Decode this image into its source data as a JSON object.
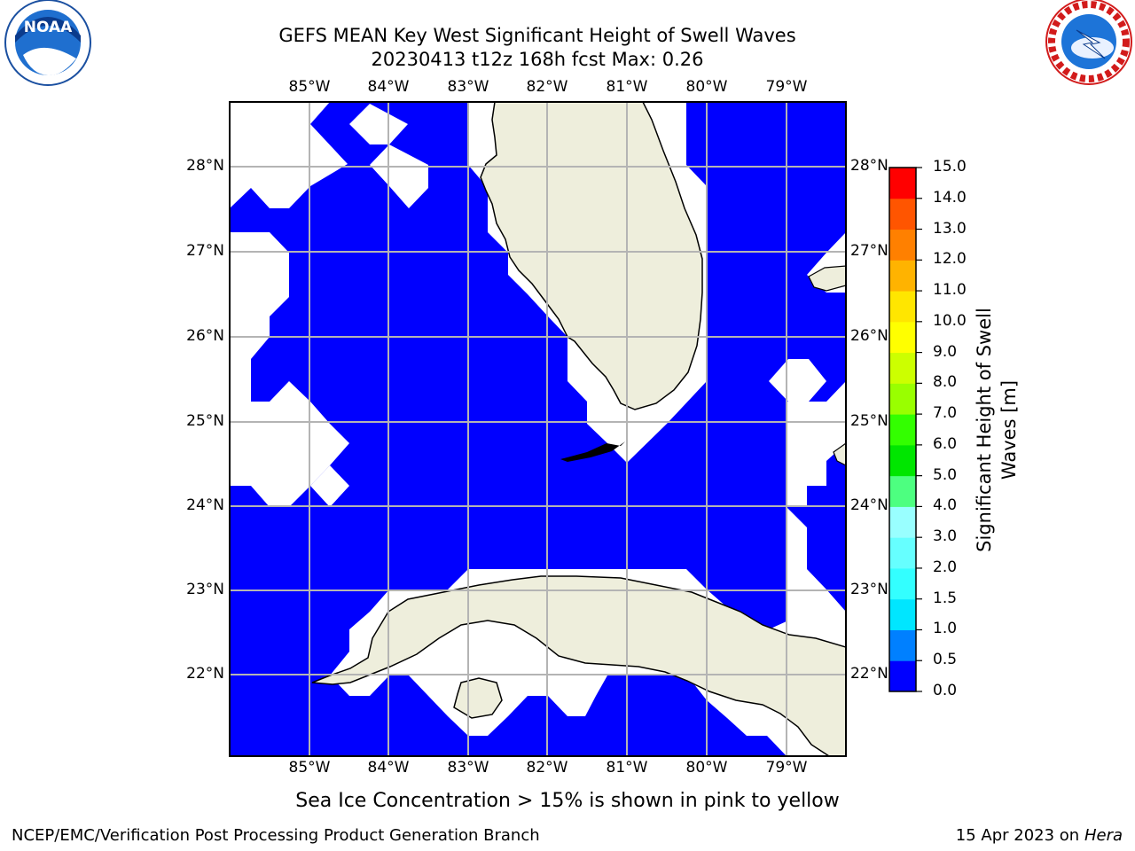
{
  "header": {
    "title_line1": "GEFS MEAN Key West Significant Height of Swell Waves",
    "title_line2": "20230413 t12z 168h fcst   Max: 0.26"
  },
  "logos": {
    "left": {
      "text": "NOAA",
      "icon": "noaa-logo"
    },
    "right": {
      "icon": "national-weather-service-logo"
    }
  },
  "map": {
    "lon_labels": [
      "85°W",
      "84°W",
      "83°W",
      "82°W",
      "81°W",
      "80°W",
      "79°W"
    ],
    "lat_labels": [
      "28°N",
      "27°N",
      "26°N",
      "25°N",
      "24°N",
      "23°N",
      "22°N"
    ],
    "ocean_color": "#0000ff",
    "land_color": "#eeeedc",
    "nodata_color": "#ffffff"
  },
  "colorbar": {
    "label": "Significant Height of Swell Waves [m]",
    "ticks": [
      "0.0",
      "0.5",
      "1.0",
      "1.5",
      "2.0",
      "3.0",
      "4.0",
      "5.0",
      "6.0",
      "7.0",
      "8.0",
      "9.0",
      "10.0",
      "11.0",
      "12.0",
      "13.0",
      "14.0",
      "15.0"
    ],
    "colors": [
      "#0000ff",
      "#0080ff",
      "#00e6ff",
      "#33ffff",
      "#66ffff",
      "#99ffff",
      "#4dff80",
      "#00e600",
      "#33ff00",
      "#99ff00",
      "#ccff00",
      "#ffff00",
      "#ffe600",
      "#ffb300",
      "#ff8000",
      "#ff5500",
      "#ff2b00",
      "#ff0000"
    ]
  },
  "caption": "Sea Ice Concentration > 15% is shown in pink to yellow",
  "footer": {
    "left": "NCEP/EMC/Verification Post Processing Product Generation Branch",
    "date": "15 Apr 2023 on ",
    "host": "Hera"
  }
}
